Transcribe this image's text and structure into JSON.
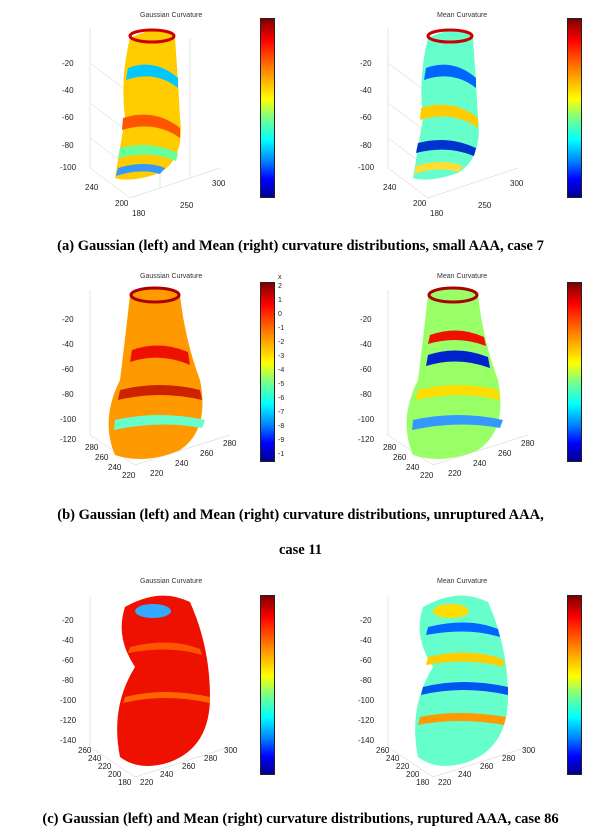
{
  "panels": [
    {
      "left_title": "Gaussian Curvature",
      "right_title": "Mean Curvature",
      "z_ticks": [
        "-20",
        "-40",
        "-60",
        "-80",
        "-100"
      ],
      "y_ticks_left": [
        "240",
        "200",
        "180"
      ],
      "x_ticks_left": [
        "250",
        "300"
      ],
      "caption": "(a) Gaussian (left) and Mean (right) curvature distributions, small AAA, case 7"
    },
    {
      "left_title": "Gaussian Curvature",
      "right_title": "Mean Curvature",
      "z_ticks": [
        "-20",
        "-40",
        "-60",
        "-80",
        "-100",
        "-120"
      ],
      "y_ticks_left": [
        "280",
        "260",
        "240",
        "220"
      ],
      "x_ticks_left": [
        "220",
        "240",
        "260",
        "280"
      ],
      "cb_exponent": "x",
      "cb_ticks_left": [
        "2",
        "1",
        "0",
        "-1",
        "-2",
        "-3",
        "-4",
        "-5",
        "-6",
        "-7",
        "-8",
        "-9",
        "-1"
      ],
      "caption_line1": "(b) Gaussian (left) and Mean (right) curvature distributions, unruptured AAA,",
      "caption_line2": "case 11"
    },
    {
      "left_title": "Gaussian Curvature",
      "right_title": "Mean Curvature",
      "z_ticks": [
        "-20",
        "-40",
        "-60",
        "-80",
        "-100",
        "-120",
        "-140"
      ],
      "y_ticks_left": [
        "260",
        "240",
        "220",
        "200",
        "180"
      ],
      "x_ticks_left": [
        "220",
        "240",
        "260",
        "280",
        "300"
      ],
      "caption": "(c) Gaussian (left) and Mean (right) curvature distributions, ruptured AAA, case 86"
    }
  ]
}
